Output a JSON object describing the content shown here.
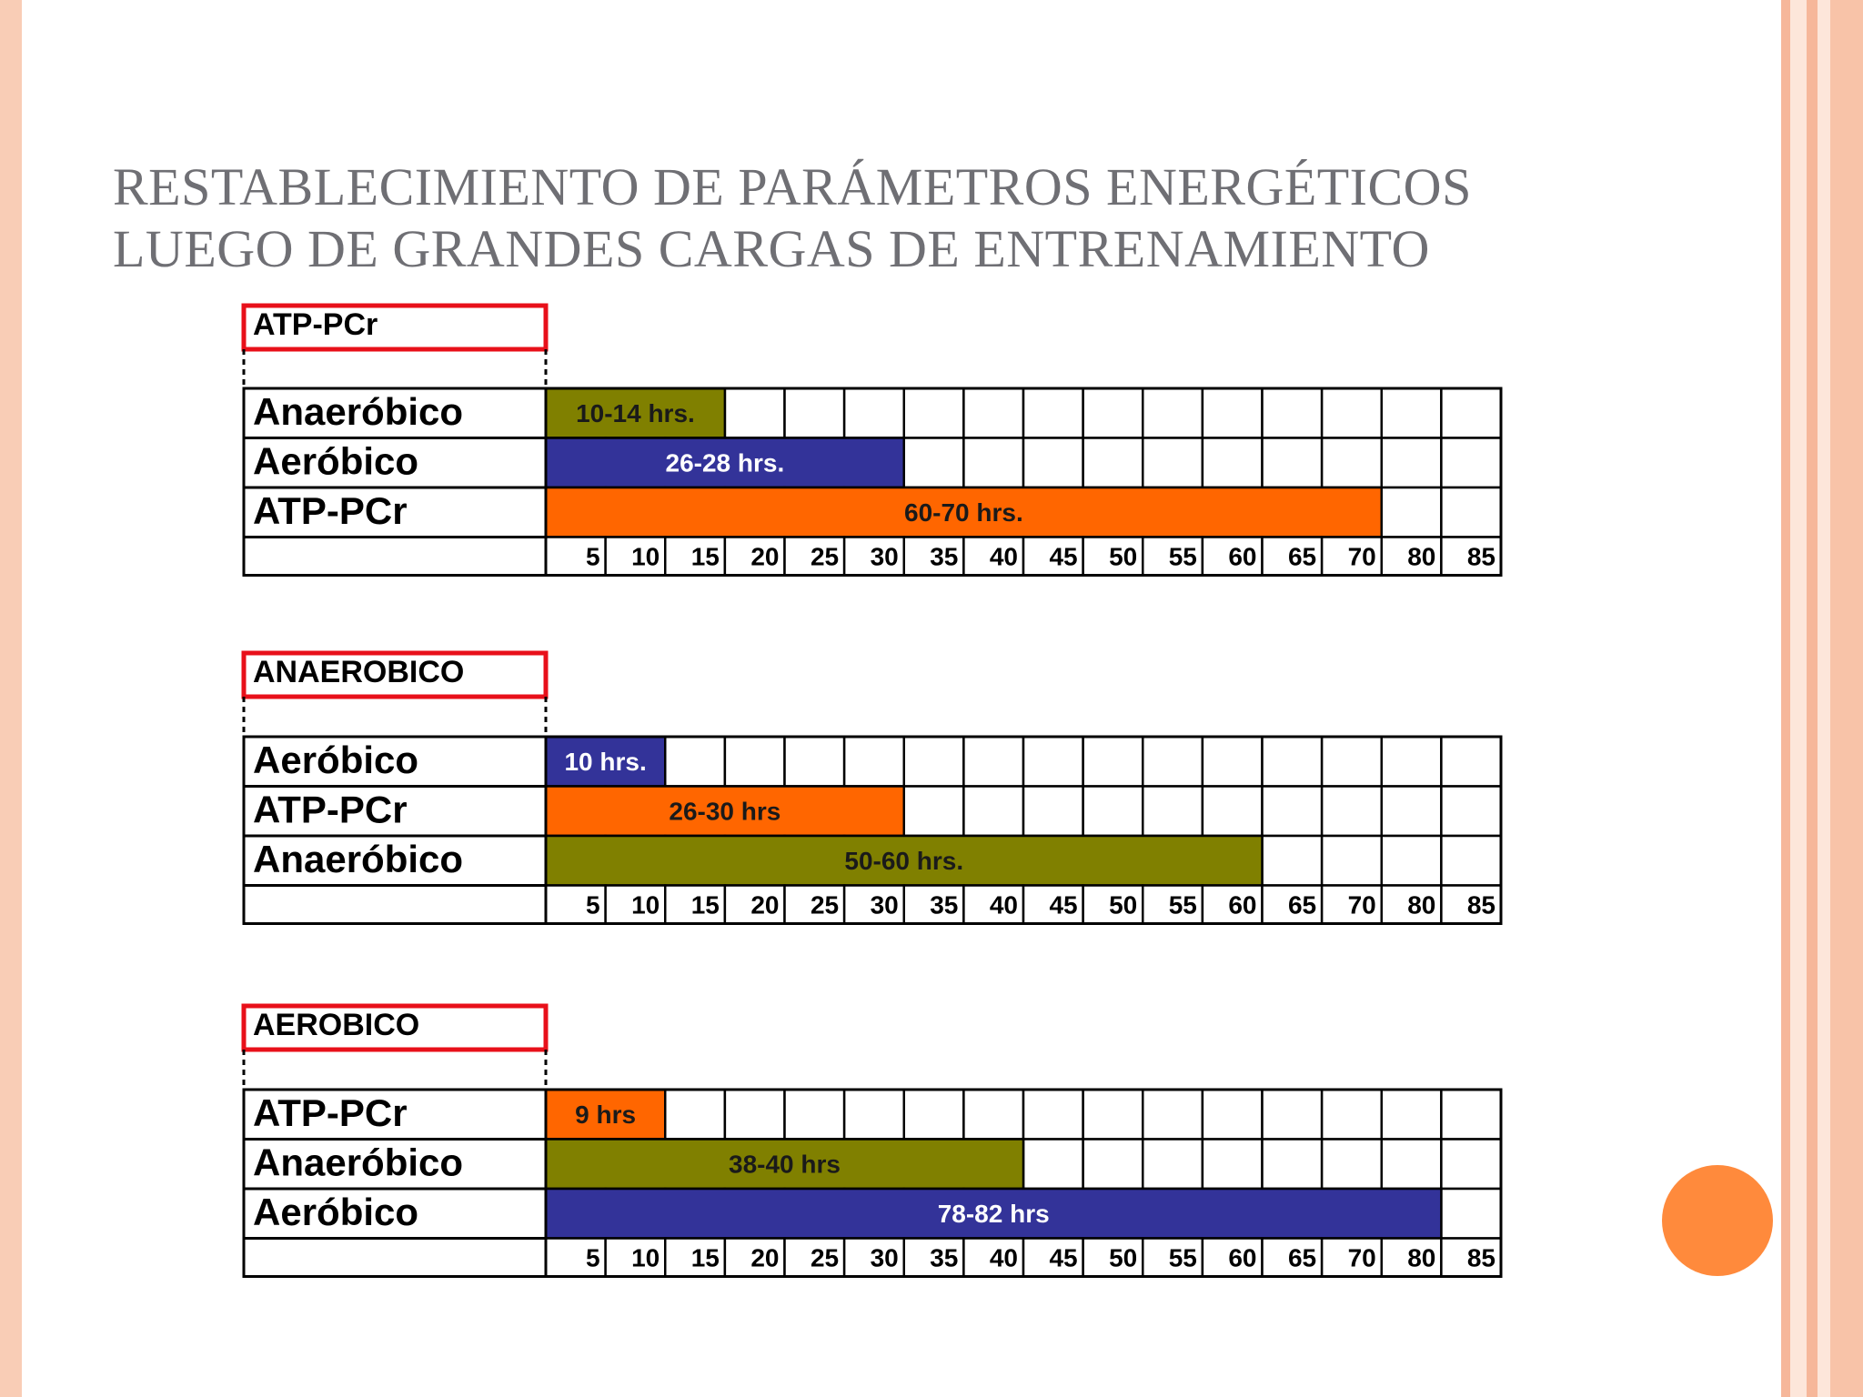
{
  "title": {
    "line1": "RESTABLECIMIENTO DE PARÁMETROS ENERGÉTICOS",
    "line2": "LUEGO DE GRANDES CARGAS DE ENTRENAMIENTO"
  },
  "colors": {
    "ATP-PCr": "#ff6600",
    "Anaeróbico": "#808000",
    "Aeróbico": "#333399",
    "box_border": "#e8101a"
  },
  "chart_data": [
    {
      "type": "bar",
      "orientation": "horizontal",
      "title": "ATP-PCr",
      "x_ticks": [
        5,
        10,
        15,
        20,
        25,
        30,
        35,
        40,
        45,
        50,
        55,
        60,
        65,
        70,
        80,
        85
      ],
      "rows": [
        {
          "label": "Anaeróbico",
          "bar_label": "10-14 hrs.",
          "cells": 3,
          "series": "Anaeróbico"
        },
        {
          "label": "Aeróbico",
          "bar_label": "26-28 hrs.",
          "cells": 6,
          "series": "Aeróbico"
        },
        {
          "label": "ATP-PCr",
          "bar_label": "60-70 hrs.",
          "cells": 14,
          "series": "ATP-PCr"
        }
      ]
    },
    {
      "type": "bar",
      "orientation": "horizontal",
      "title": "ANAEROBICO",
      "x_ticks": [
        5,
        10,
        15,
        20,
        25,
        30,
        35,
        40,
        45,
        50,
        55,
        60,
        65,
        70,
        80,
        85
      ],
      "rows": [
        {
          "label": "Aeróbico",
          "bar_label": "10 hrs.",
          "cells": 2,
          "series": "Aeróbico"
        },
        {
          "label": "ATP-PCr",
          "bar_label": "26-30 hrs",
          "cells": 6,
          "series": "ATP-PCr"
        },
        {
          "label": "Anaeróbico",
          "bar_label": "50-60 hrs.",
          "cells": 12,
          "series": "Anaeróbico"
        }
      ]
    },
    {
      "type": "bar",
      "orientation": "horizontal",
      "title": "AEROBICO",
      "x_ticks": [
        5,
        10,
        15,
        20,
        25,
        30,
        35,
        40,
        45,
        50,
        55,
        60,
        65,
        70,
        80,
        85
      ],
      "rows": [
        {
          "label": "ATP-PCr",
          "bar_label": "9 hrs",
          "cells": 2,
          "series": "ATP-PCr"
        },
        {
          "label": "Anaeróbico",
          "bar_label": "38-40 hrs",
          "cells": 8,
          "series": "Anaeróbico"
        },
        {
          "label": "Aeróbico",
          "bar_label": "78-82 hrs",
          "cells": 15,
          "series": "Aeróbico"
        }
      ]
    }
  ]
}
